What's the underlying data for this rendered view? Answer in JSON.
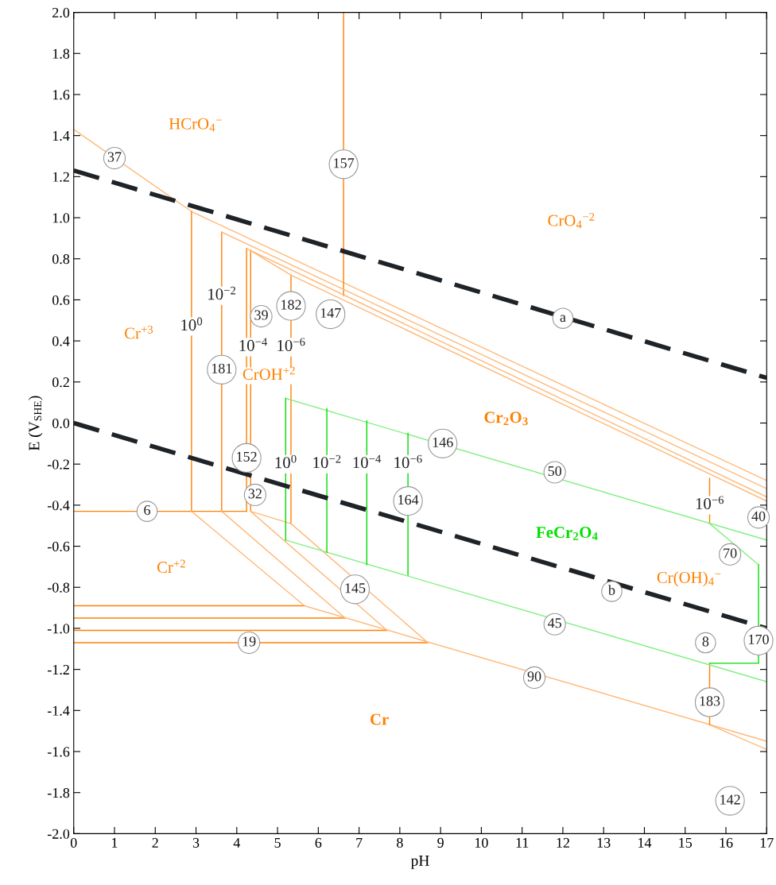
{
  "chart_data": {
    "type": "line",
    "xlabel": "pH",
    "ylabel": "E (V$_{SHE}$)",
    "xlim": [
      0,
      17
    ],
    "xticks": [
      0,
      1,
      2,
      3,
      4,
      5,
      6,
      7,
      8,
      9,
      10,
      11,
      12,
      13,
      14,
      15,
      16,
      17
    ],
    "ylim": [
      -2,
      2
    ],
    "yticks": [
      {
        "value": -2,
        "label": "-2.0"
      },
      {
        "value": -1.8,
        "label": "-1.8"
      },
      {
        "value": -1.6,
        "label": "-1.6"
      },
      {
        "value": -1.4,
        "label": "-1.4"
      },
      {
        "value": -1.2,
        "label": "-1.2"
      },
      {
        "value": -1,
        "label": "-1.0"
      },
      {
        "value": -0.8,
        "label": "-0.8"
      },
      {
        "value": -0.6,
        "label": "-0.6"
      },
      {
        "value": -0.4,
        "label": "-0.4"
      },
      {
        "value": -0.2,
        "label": "-0.2"
      },
      {
        "value": 0,
        "label": "0.0"
      },
      {
        "value": 0.2,
        "label": "0.2"
      },
      {
        "value": 0.4,
        "label": "0.4"
      },
      {
        "value": 0.6,
        "label": "0.6"
      },
      {
        "value": 0.8,
        "label": "0.8"
      },
      {
        "value": 1,
        "label": "1.0"
      },
      {
        "value": 1.2,
        "label": "1.2"
      },
      {
        "value": 1.4,
        "label": "1.4"
      },
      {
        "value": 1.6,
        "label": "1.6"
      },
      {
        "value": 1.8,
        "label": "1.8"
      },
      {
        "value": 2,
        "label": "2.0"
      }
    ],
    "grid": false,
    "legend": false,
    "marker": "none",
    "series": [
      {
        "color": "#ffb878",
        "x": [
          0,
          2.89,
          17
        ],
        "values": [
          1.43,
          1.03,
          -0.28
        ]
      },
      {
        "color": "#ff8000",
        "x": [
          2.89,
          2.89
        ],
        "values": [
          1.03,
          -0.43
        ]
      },
      {
        "color": "#ff8000",
        "x": [
          3.63,
          3.63
        ],
        "values": [
          0.93,
          -0.43
        ]
      },
      {
        "color": "#ff8000",
        "x": [
          4.24,
          4.24
        ],
        "values": [
          0.85,
          -0.43
        ]
      },
      {
        "color": "#ff8000",
        "x": [
          4.34,
          4.34
        ],
        "values": [
          0.84,
          -0.43
        ]
      },
      {
        "color": "#ff8000",
        "x": [
          5.33,
          5.33
        ],
        "values": [
          0.72,
          -0.49
        ]
      },
      {
        "color": "#ff8000",
        "x": [
          6.62,
          6.62
        ],
        "values": [
          2.0,
          0.62
        ]
      },
      {
        "color": "#ff8000",
        "x": [
          0,
          4.24
        ],
        "values": [
          -0.43,
          -0.43
        ]
      },
      {
        "color": "#ffb878",
        "x": [
          3.63,
          17
        ],
        "values": [
          0.93,
          -0.32
        ]
      },
      {
        "color": "#ffb878",
        "x": [
          4.24,
          17
        ],
        "values": [
          0.85,
          -0.36
        ]
      },
      {
        "color": "#ffb878",
        "x": [
          4.34,
          5.33,
          17
        ],
        "values": [
          0.84,
          0.72,
          -0.38
        ]
      },
      {
        "color": "#ff8000",
        "x": [
          0,
          5.66
        ],
        "values": [
          -0.89,
          -0.89
        ]
      },
      {
        "color": "#ff8000",
        "x": [
          0,
          6.66
        ],
        "values": [
          -0.95,
          -0.95
        ]
      },
      {
        "color": "#ff8000",
        "x": [
          0,
          7.69
        ],
        "values": [
          -1.01,
          -1.01
        ]
      },
      {
        "color": "#ff8000",
        "x": [
          0,
          8.69
        ],
        "values": [
          -1.07,
          -1.07
        ]
      },
      {
        "color": "#ffb878",
        "x": [
          2.89,
          5.66,
          17
        ],
        "values": [
          -0.43,
          -0.89,
          -1.55
        ]
      },
      {
        "color": "#ffb878",
        "x": [
          3.63,
          6.66
        ],
        "values": [
          -0.43,
          -0.95
        ]
      },
      {
        "color": "#ffb878",
        "x": [
          4.34,
          7.69
        ],
        "values": [
          -0.43,
          -1.01
        ]
      },
      {
        "color": "#ffb878",
        "x": [
          4.34,
          5.33,
          8.69
        ],
        "values": [
          -0.43,
          -0.49,
          -1.07
        ]
      },
      {
        "color": "#ffb878",
        "x": [
          15.6,
          17
        ],
        "values": [
          -1.47,
          -1.59
        ]
      },
      {
        "color": "#ff8000",
        "x": [
          15.6,
          15.6
        ],
        "values": [
          -0.27,
          -0.49
        ]
      },
      {
        "color": "#ff8000",
        "x": [
          15.6,
          15.6
        ],
        "values": [
          -1.17,
          -1.47
        ]
      },
      {
        "color": "#80f080",
        "x": [
          5.2,
          17
        ],
        "values": [
          0.12,
          -0.57
        ]
      },
      {
        "color": "#80f080",
        "x": [
          5.2,
          17
        ],
        "values": [
          -0.57,
          -1.26
        ]
      },
      {
        "color": "#00dd00",
        "x": [
          5.2,
          5.2
        ],
        "values": [
          0.12,
          -0.57
        ]
      },
      {
        "color": "#00dd00",
        "x": [
          6.21,
          6.21
        ],
        "values": [
          0.07,
          -0.63
        ]
      },
      {
        "color": "#00dd00",
        "x": [
          7.19,
          7.19
        ],
        "values": [
          0.01,
          -0.69
        ]
      },
      {
        "color": "#00dd00",
        "x": [
          8.2,
          8.2
        ],
        "values": [
          -0.05,
          -0.74
        ]
      },
      {
        "color": "#80f080",
        "x": [
          15.6,
          16.8
        ],
        "values": [
          -0.49,
          -0.69
        ]
      },
      {
        "color": "#00dd00",
        "x": [
          16.8,
          16.8,
          15.6
        ],
        "values": [
          -0.69,
          -1.17,
          -1.17
        ]
      },
      {
        "color": "#1e2328",
        "line_style": "dashed",
        "x": [
          0,
          17
        ],
        "values": [
          1.23,
          0.22
        ]
      },
      {
        "color": "#1e2328",
        "line_style": "dashed",
        "x": [
          0,
          17
        ],
        "values": [
          0.0,
          -1.0
        ]
      }
    ],
    "annotations": [
      "HCrO$_{4}$$^{−}$",
      "CrO$_{4}$$^{−2}$",
      "Cr$^{+3}$",
      "CrOH$^{+2}$",
      "Cr$_{2}$O$_{3}$",
      "FeCr$_{2}$O$_{4}$",
      "Cr$^{+2}$",
      "Cr(OH)$_{4}$$^{−}$",
      "Cr",
      {
        "text": "10$^{0}$",
        "x": 2.89,
        "y": 0.47
      },
      {
        "text": "10$^{−2}$",
        "x": 3.63,
        "y": 0.62
      },
      {
        "text": "10$^{−4}$",
        "x": 4.4,
        "y": 0.37
      },
      {
        "text": "10$^{−6}$",
        "x": 5.33,
        "y": 0.37
      },
      {
        "text": "10$^{0}$",
        "x": 5.2,
        "y": -0.2
      },
      {
        "text": "10$^{−2}$",
        "x": 6.21,
        "y": -0.2
      },
      {
        "text": "10$^{−4}$",
        "x": 7.19,
        "y": -0.2
      },
      {
        "text": "10$^{−6}$",
        "x": 8.2,
        "y": -0.2
      },
      {
        "text": "10$^{−6}$",
        "x": 15.6,
        "y": -0.4
      },
      {
        "text": "37",
        "x": 1.0,
        "y": 1.29
      },
      {
        "text": "157",
        "x": 6.62,
        "y": 1.26
      },
      {
        "text": "a",
        "x": 12.0,
        "y": 0.51
      },
      {
        "text": "39",
        "x": 4.6,
        "y": 0.52
      },
      {
        "text": "182",
        "x": 5.33,
        "y": 0.57
      },
      {
        "text": "147",
        "x": 6.3,
        "y": 0.53
      },
      {
        "text": "181",
        "x": 3.63,
        "y": 0.26
      },
      {
        "text": "146",
        "x": 9.05,
        "y": -0.1
      },
      {
        "text": "152",
        "x": 4.24,
        "y": -0.17
      },
      {
        "text": "6",
        "x": 1.8,
        "y": -0.43
      },
      {
        "text": "32",
        "x": 4.45,
        "y": -0.35
      },
      {
        "text": "164",
        "x": 8.2,
        "y": -0.38
      },
      {
        "text": "50",
        "x": 11.8,
        "y": -0.24
      },
      {
        "text": "40",
        "x": 16.8,
        "y": -0.46
      },
      {
        "text": "70",
        "x": 16.1,
        "y": -0.64
      },
      {
        "text": "145",
        "x": 6.9,
        "y": -0.81
      },
      {
        "text": "b",
        "x": 13.2,
        "y": -0.82
      },
      {
        "text": "45",
        "x": 11.8,
        "y": -0.98
      },
      {
        "text": "8",
        "x": 15.5,
        "y": -1.07
      },
      {
        "text": "170",
        "x": 16.8,
        "y": -1.06
      },
      {
        "text": "19",
        "x": 4.3,
        "y": -1.07
      },
      {
        "text": "90",
        "x": 11.3,
        "y": -1.24
      },
      {
        "text": "183",
        "x": 15.6,
        "y": -1.36
      },
      {
        "text": "142",
        "x": 16.1,
        "y": -1.84
      }
    ]
  }
}
